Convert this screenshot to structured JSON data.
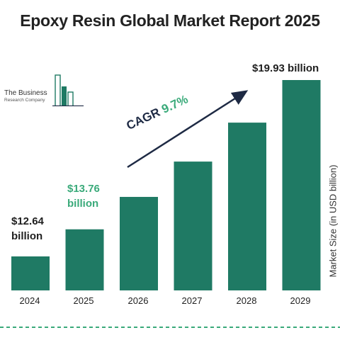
{
  "page": {
    "title": "Epoxy Resin Global Market Report 2025"
  },
  "logo": {
    "name": "The Business",
    "sub": "Research Company"
  },
  "colors": {
    "bar": "#1f7a64",
    "accent": "#3aaa7a",
    "dark_text": "#1e2a44"
  },
  "annotations": {
    "cagr_label": "CAGR",
    "cagr_value": "9.7%"
  },
  "labels": {
    "v2024_line1": "$12.64",
    "v2024_line2": "billion",
    "v2025_line1": "$13.76",
    "v2025_line2": "billion",
    "v2029": "$19.93 billion"
  },
  "chart_data": {
    "type": "bar",
    "title": "Epoxy Resin Global Market Report 2025",
    "categories": [
      "2024",
      "2025",
      "2026",
      "2027",
      "2028",
      "2029"
    ],
    "values": [
      12.64,
      13.76,
      15.1,
      16.56,
      18.17,
      19.93
    ],
    "ylabel": "Market Size (in USD billion)",
    "xlabel": "",
    "grid": false,
    "cagr": "9.7%"
  }
}
